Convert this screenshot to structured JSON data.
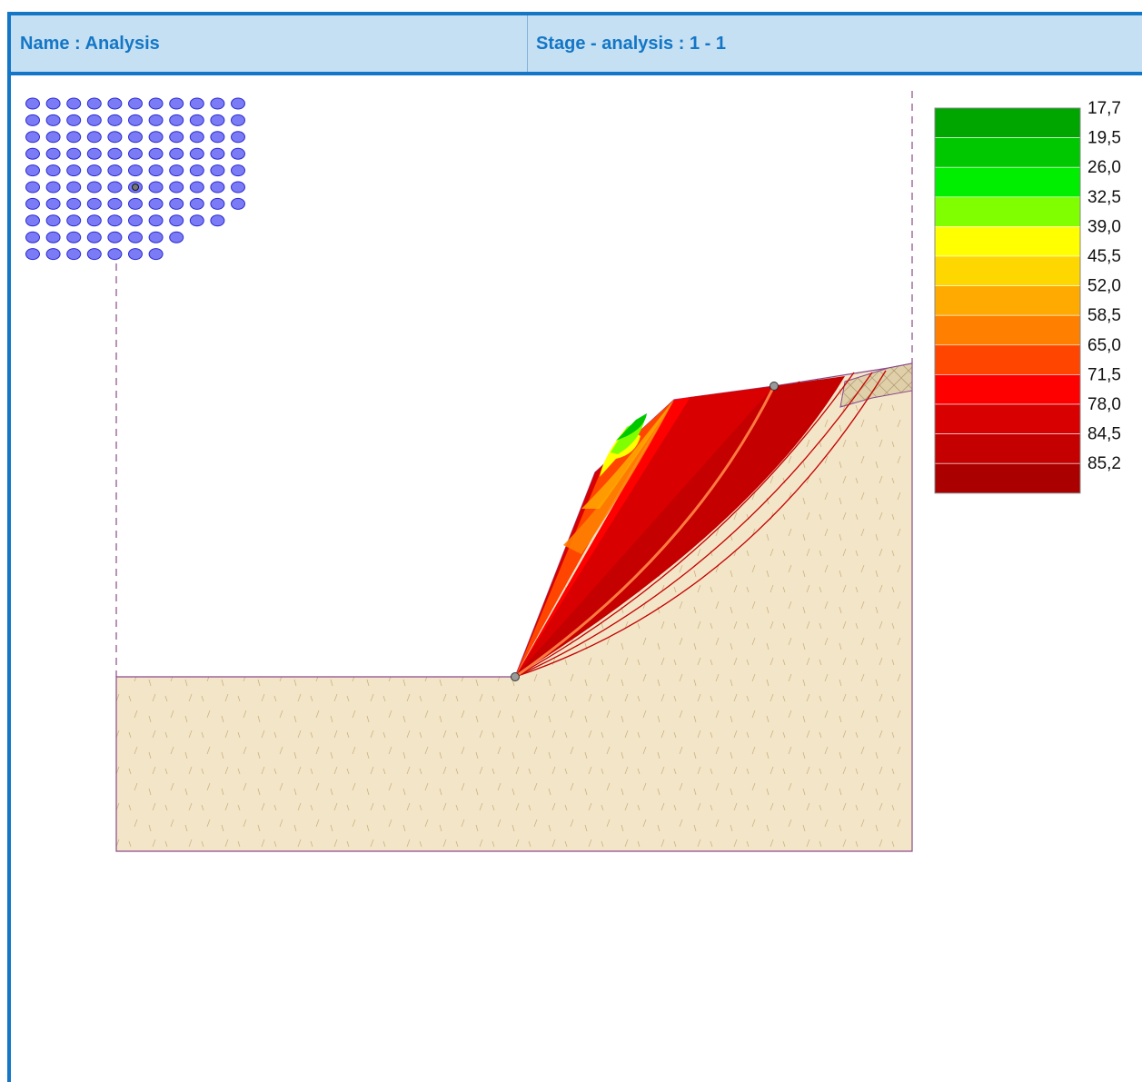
{
  "header": {
    "name_label": "Name : Analysis",
    "stage_label": "Stage - analysis : 1 - 1"
  },
  "legend": {
    "items": [
      {
        "value": "17,7",
        "color": "#00a600"
      },
      {
        "value": "19,5",
        "color": "#00c800"
      },
      {
        "value": "26,0",
        "color": "#00ee00"
      },
      {
        "value": "32,5",
        "color": "#80ff00"
      },
      {
        "value": "39,0",
        "color": "#ffff00"
      },
      {
        "value": "45,5",
        "color": "#ffd700"
      },
      {
        "value": "52,0",
        "color": "#ffaa00"
      },
      {
        "value": "58,5",
        "color": "#ff8000"
      },
      {
        "value": "65,0",
        "color": "#ff4500"
      },
      {
        "value": "71,5",
        "color": "#ff0000"
      },
      {
        "value": "78,0",
        "color": "#d80000"
      },
      {
        "value": "84,5",
        "color": "#c40000"
      },
      {
        "value": "85,2",
        "color": "#aa0000"
      }
    ]
  },
  "colors": {
    "accent": "#1476c6",
    "header_bg": "#c5e0f2",
    "soil": "#f3e5c8",
    "grid_point": "#7b7bf5"
  }
}
